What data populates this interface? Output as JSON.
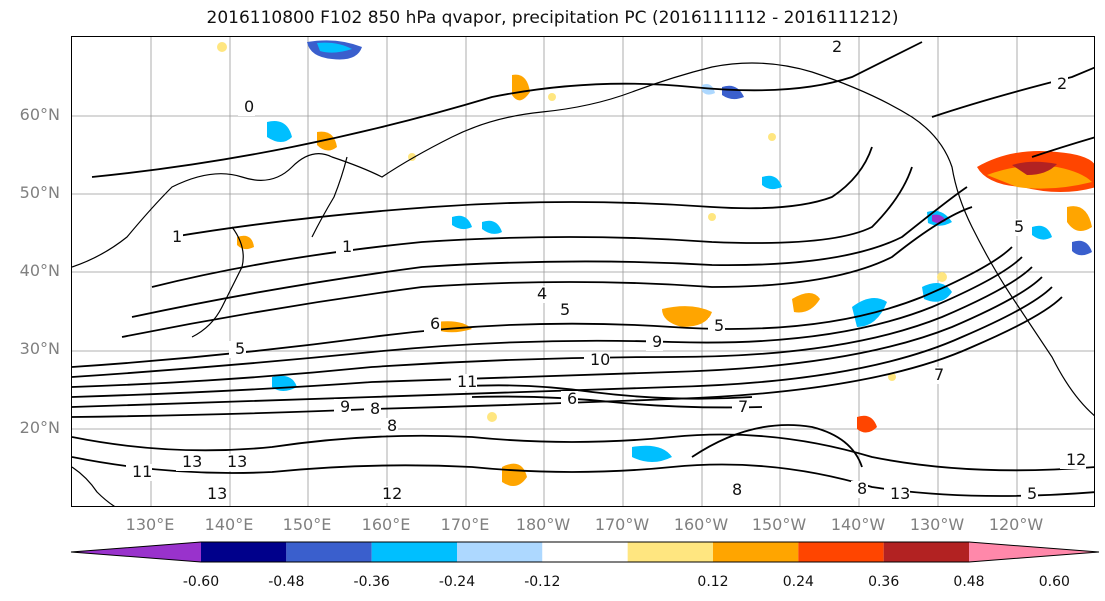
{
  "title": "2016110800 F102 850 hPa qvapor, precipitation PC (2016111112 - 2016111212)",
  "lat_labels": [
    "60°N",
    "50°N",
    "40°N",
    "30°N",
    "20°N"
  ],
  "lon_labels": [
    "130°E",
    "140°E",
    "150°E",
    "160°E",
    "170°E",
    "180°W",
    "170°W",
    "160°W",
    "150°W",
    "140°W",
    "130°W",
    "120°W"
  ],
  "contour_labels": [
    "2",
    "2",
    "0",
    "1",
    "1",
    "4",
    "5",
    "6",
    "5",
    "10",
    "9",
    "11",
    "6",
    "8",
    "9",
    "7",
    "5",
    "8",
    "13",
    "11",
    "13",
    "13",
    "12",
    "12",
    "8",
    "8",
    "13",
    "5",
    "5",
    "7"
  ],
  "colorbar": {
    "tick_labels": [
      "-0.60",
      "-0.48",
      "-0.36",
      "-0.24",
      "-0.12",
      "0.12",
      "0.24",
      "0.36",
      "0.48",
      "0.60"
    ],
    "colors": [
      "#9932CC",
      "#00008B",
      "#3A5FCD",
      "#00BFFF",
      "#ADD8FF",
      "#FFFFFF",
      "#FFE680",
      "#FFA500",
      "#FF4500",
      "#B22222",
      "#FF88AA"
    ]
  }
}
